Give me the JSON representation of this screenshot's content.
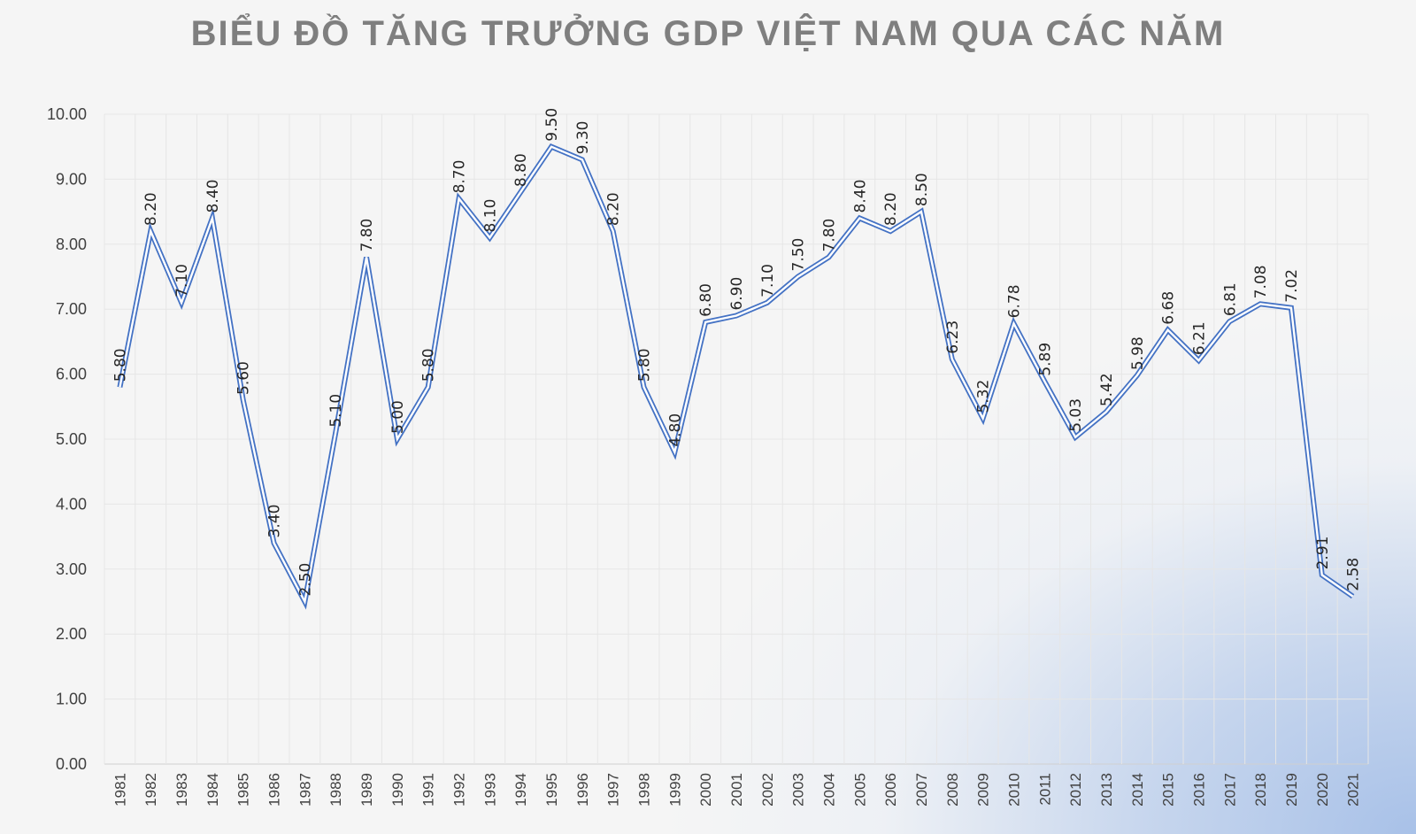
{
  "chart_data": {
    "type": "line",
    "title": "BIỂU ĐỒ TĂNG TRƯỞNG GDP VIỆT NAM QUA CÁC NĂM",
    "xlabel": "",
    "ylabel": "",
    "ylim": [
      0,
      10
    ],
    "yticks": [
      "0.00",
      "1.00",
      "2.00",
      "3.00",
      "4.00",
      "5.00",
      "6.00",
      "7.00",
      "8.00",
      "9.00",
      "10.00"
    ],
    "grid": true,
    "line_color": "#4472c4",
    "categories": [
      "1981",
      "1982",
      "1983",
      "1984",
      "1985",
      "1986",
      "1987",
      "1988",
      "1989",
      "1990",
      "1991",
      "1992",
      "1993",
      "1994",
      "1995",
      "1996",
      "1997",
      "1998",
      "1999",
      "2000",
      "2001",
      "2002",
      "2003",
      "2004",
      "2005",
      "2006",
      "2007",
      "2008",
      "2009",
      "2010",
      "2011",
      "2012",
      "2013",
      "2014",
      "2015",
      "2016",
      "2017",
      "2018",
      "2019",
      "2020",
      "2021"
    ],
    "values": [
      5.8,
      8.2,
      7.1,
      8.4,
      5.6,
      3.4,
      2.5,
      5.1,
      7.8,
      5.0,
      5.8,
      8.7,
      8.1,
      8.8,
      9.5,
      9.3,
      8.2,
      5.8,
      4.8,
      6.8,
      6.9,
      7.1,
      7.5,
      7.8,
      8.4,
      8.2,
      8.5,
      6.23,
      5.32,
      6.78,
      5.89,
      5.03,
      5.42,
      5.98,
      6.68,
      6.21,
      6.81,
      7.08,
      7.02,
      2.91,
      2.58
    ],
    "data_labels": [
      "5.80",
      "8.20",
      "7.10",
      "8.40",
      "5.60",
      "3.40",
      "2.50",
      "5.10",
      "7.80",
      "5.00",
      "5.80",
      "8.70",
      "8.10",
      "8.80",
      "9.50",
      "9.30",
      "8.20",
      "5.80",
      "4.80",
      "6.80",
      "6.90",
      "7.10",
      "7.50",
      "7.80",
      "8.40",
      "8.20",
      "8.50",
      "6.23",
      "5.32",
      "6.78",
      "5.89",
      "5.03",
      "5.42",
      "5.98",
      "6.68",
      "6.21",
      "6.81",
      "7.08",
      "7.02",
      "2.91",
      "2.58"
    ]
  }
}
